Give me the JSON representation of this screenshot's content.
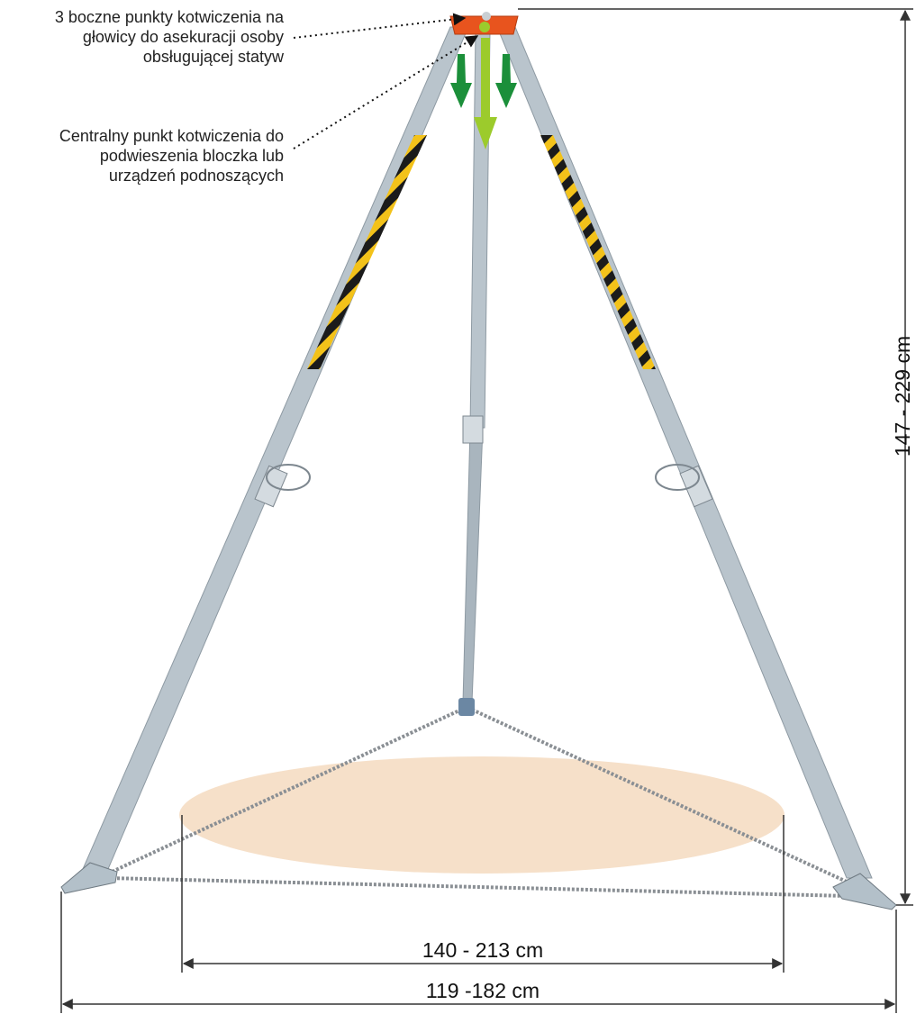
{
  "annotations": {
    "side_anchor_points": "3 boczne punkty kotwiczenia na\ngłowicy do asekuracji osoby\nobsługującej statyw",
    "central_anchor_point": "Centralny punkt kotwiczenia do\npodwieszenia bloczka lub\nurządzeń podnoszących"
  },
  "dimensions": {
    "height": "147 - 229 cm",
    "inner_width": "140 - 213 cm",
    "outer_width": "119 -182 cm"
  },
  "colors": {
    "head": "#e8541e",
    "leg": "#b9c4cc",
    "leg_dark": "#8e9aa3",
    "stripe_yellow": "#f3c21a",
    "stripe_black": "#1b1b1b",
    "arrow_green": "#1b8f3a",
    "arrow_light_green": "#9ccb2c",
    "area": "#f6e0c9",
    "chain": "#8a8f94",
    "dim_line": "#333333"
  }
}
